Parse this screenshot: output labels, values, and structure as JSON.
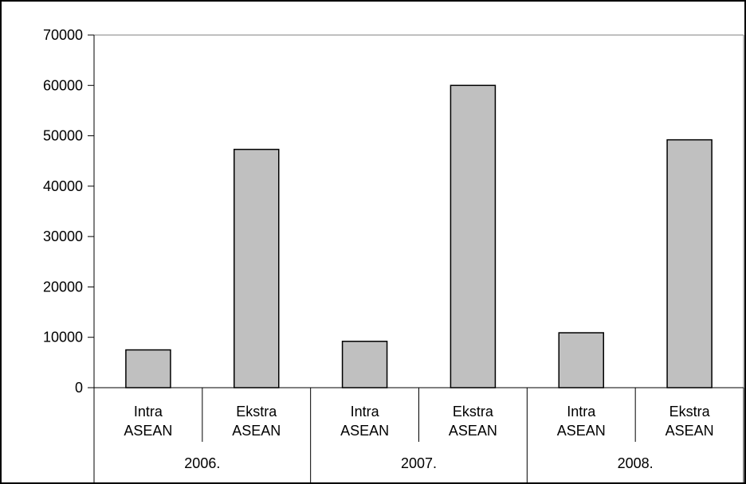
{
  "chart_data": {
    "type": "bar",
    "categories": [
      {
        "line1": "Intra",
        "line2": "ASEAN",
        "group": "2006."
      },
      {
        "line1": "Ekstra",
        "line2": "ASEAN",
        "group": "2006."
      },
      {
        "line1": "Intra",
        "line2": "ASEAN",
        "group": "2007."
      },
      {
        "line1": "Ekstra",
        "line2": "ASEAN",
        "group": "2007."
      },
      {
        "line1": "Intra",
        "line2": "ASEAN",
        "group": "2008."
      },
      {
        "line1": "Ekstra",
        "line2": "ASEAN",
        "group": "2008."
      }
    ],
    "groups": [
      "2006.",
      "2007.",
      "2008."
    ],
    "values": [
      7500,
      47300,
      9200,
      60000,
      10900,
      49200
    ],
    "ylim": [
      0,
      70000
    ],
    "yticks": [
      "0",
      "10000",
      "20000",
      "30000",
      "40000",
      "50000",
      "60000",
      "70000"
    ],
    "bar_color": "#c0c0c0",
    "grid": false,
    "legend": "none"
  }
}
